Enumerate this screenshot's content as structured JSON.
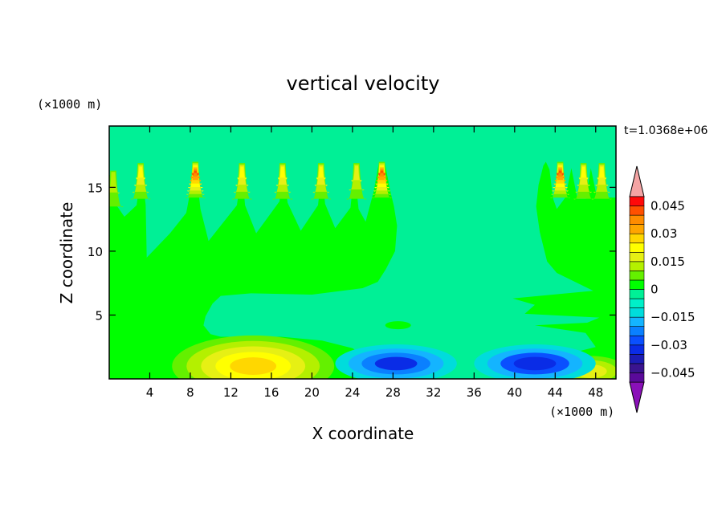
{
  "chart_data": {
    "type": "heatmap",
    "title": "vertical velocity",
    "xlabel": "X coordinate",
    "ylabel": "Z coordinate",
    "x_unit": "(×1000 m)",
    "y_unit": "(×1000 m)",
    "time_label": "t=1.0368e+06",
    "xlim": [
      0,
      50
    ],
    "ylim": [
      0,
      19.8
    ],
    "x_ticks": [
      4,
      8,
      12,
      16,
      20,
      24,
      28,
      32,
      36,
      40,
      44,
      48
    ],
    "x_tick_labels": [
      "4",
      "8",
      "12",
      "16",
      "20",
      "24",
      "28",
      "32",
      "36",
      "40",
      "44",
      "48"
    ],
    "y_ticks": [
      5,
      10,
      15
    ],
    "y_tick_labels": [
      "5",
      "10",
      "15"
    ],
    "background_value": -0.0025,
    "colorbar": {
      "levels": [
        -0.05,
        -0.045,
        -0.04,
        -0.035,
        -0.03,
        -0.025,
        -0.02,
        -0.015,
        -0.01,
        -0.005,
        0,
        0.005,
        0.01,
        0.015,
        0.02,
        0.025,
        0.03,
        0.035,
        0.04,
        0.045,
        0.05
      ],
      "colors": [
        "#5a0a9a",
        "#3a148f",
        "#1c1cb4",
        "#0a2ce6",
        "#0a50ff",
        "#0a80ff",
        "#14b4ff",
        "#00dcdc",
        "#00f0c8",
        "#00f096",
        "#00ff00",
        "#64f000",
        "#b4f000",
        "#e6f014",
        "#ffff00",
        "#ffd700",
        "#ffa500",
        "#ff8c00",
        "#ff5000",
        "#ff0a0a"
      ],
      "under_color": "#8a10b8",
      "over_color": "#f4a4a4",
      "labeled_values": [
        0.045,
        0.03,
        0.015,
        0,
        -0.015,
        -0.03,
        -0.045
      ],
      "labels": [
        "0.045",
        "0.03",
        "0.015",
        "0",
        "−0.015",
        "−0.03",
        "−0.045"
      ]
    },
    "plumes": [
      {
        "x": 0.4,
        "top": 16.3,
        "peak": 0.014
      },
      {
        "x": 3.1,
        "top": 16.9,
        "peak": 0.022
      },
      {
        "x": 8.5,
        "top": 17.0,
        "peak": 0.042
      },
      {
        "x": 13.1,
        "top": 16.9,
        "peak": 0.026
      },
      {
        "x": 17.1,
        "top": 16.9,
        "peak": 0.022
      },
      {
        "x": 20.9,
        "top": 16.9,
        "peak": 0.022
      },
      {
        "x": 24.4,
        "top": 16.9,
        "peak": 0.02
      },
      {
        "x": 26.9,
        "top": 17.0,
        "peak": 0.042
      },
      {
        "x": 44.5,
        "top": 17.0,
        "peak": 0.042
      },
      {
        "x": 46.8,
        "top": 16.9,
        "peak": 0.022
      },
      {
        "x": 48.6,
        "top": 16.9,
        "peak": 0.022
      }
    ],
    "features": [
      {
        "name": "updraft-region-left",
        "value": 0.003,
        "x_range": [
          0,
          28.5
        ],
        "z_range": [
          0,
          17.0
        ]
      },
      {
        "name": "updraft-region-right",
        "value": 0.003,
        "x_range": [
          37.5,
          50
        ],
        "z_range": [
          0,
          17.0
        ]
      },
      {
        "name": "low-level-updraft-core",
        "value": 0.025,
        "center": [
          14.2,
          1.0
        ],
        "max": 0.027
      },
      {
        "name": "low-level-updraft-right",
        "value": 0.018,
        "center": [
          47.5,
          0.6
        ],
        "max": 0.02
      },
      {
        "name": "downdraft-1",
        "value": -0.012,
        "center": [
          28.3,
          1.2
        ],
        "min": -0.032
      },
      {
        "name": "downdraft-2",
        "value": -0.012,
        "center": [
          42.0,
          1.2
        ],
        "min": -0.035
      },
      {
        "name": "weak-updraft-spot",
        "value": 0.002,
        "center": [
          28.5,
          4.2
        ]
      }
    ]
  }
}
